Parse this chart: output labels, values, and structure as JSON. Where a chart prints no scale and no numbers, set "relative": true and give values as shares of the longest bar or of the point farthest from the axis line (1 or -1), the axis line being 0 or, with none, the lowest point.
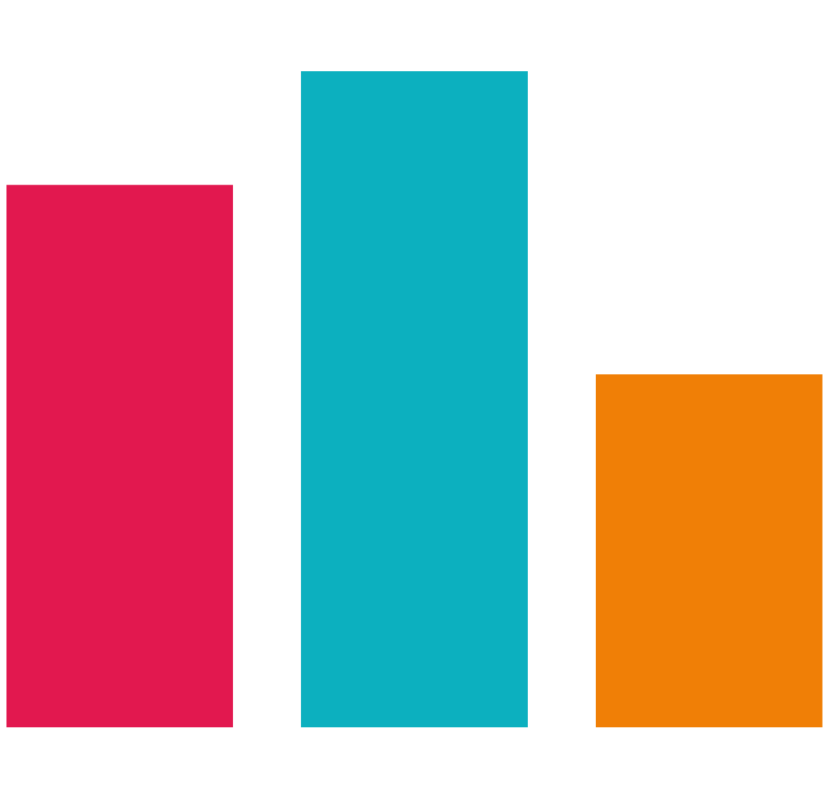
{
  "chart_data": {
    "type": "bar",
    "relative": true,
    "categories": [
      null,
      null,
      null
    ],
    "values": [
      0.827,
      1,
      0.538
    ],
    "colors": [
      "#e2184f",
      "#0cb0bf",
      "#f07f06"
    ]
  }
}
